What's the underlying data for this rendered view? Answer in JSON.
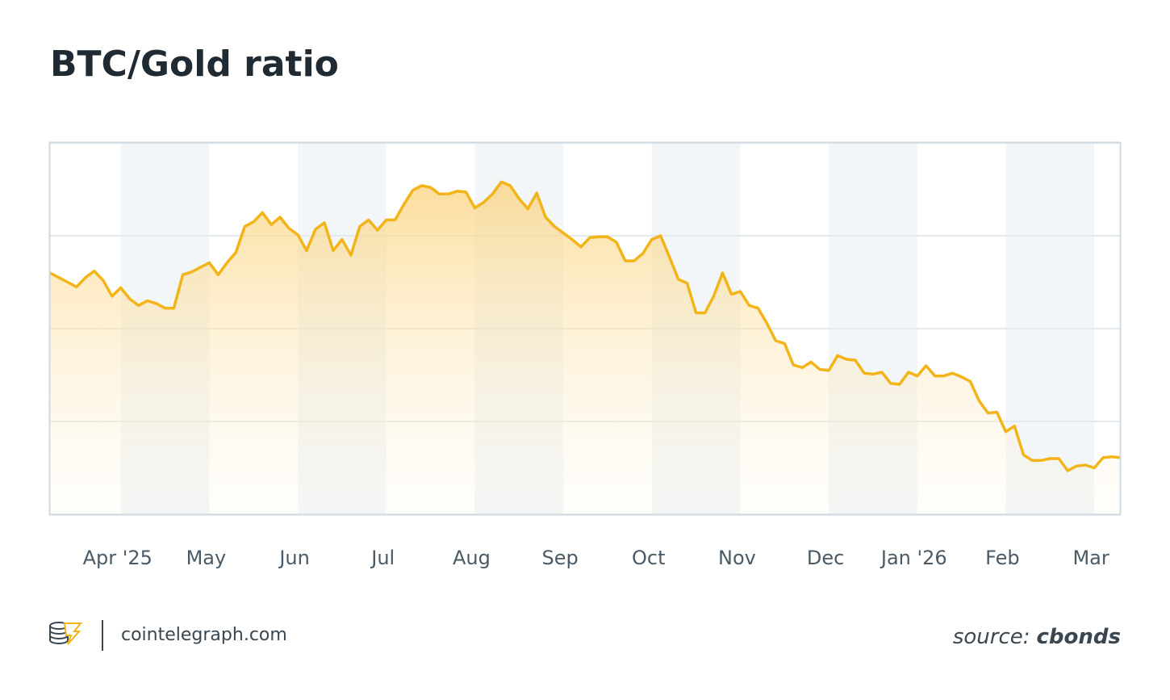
{
  "chart_data": {
    "type": "line",
    "title": "BTC/Gold ratio",
    "categories": [
      null,
      null,
      null,
      null,
      null,
      null,
      null,
      null,
      "Apr '25",
      null,
      null,
      null,
      null,
      null,
      null,
      null,
      null,
      null,
      "May",
      null,
      null,
      null,
      null,
      null,
      null,
      null,
      null,
      null,
      "Jun",
      null,
      null,
      null,
      null,
      null,
      null,
      null,
      null,
      null,
      "Jul",
      null,
      null,
      null,
      null,
      null,
      null,
      null,
      null,
      null,
      "Aug",
      null,
      null,
      null,
      null,
      null,
      null,
      null,
      null,
      null,
      "Sep",
      null,
      null,
      null,
      null,
      null,
      null,
      null,
      null,
      null,
      "Oct",
      null,
      null,
      null,
      null,
      null,
      null,
      null,
      null,
      null,
      "Nov",
      null,
      null,
      null,
      null,
      null,
      null,
      null,
      null,
      null,
      "Dec",
      null,
      null,
      null,
      null,
      null,
      null,
      null,
      null,
      null,
      "Jan '26",
      null,
      null,
      null,
      null,
      null,
      null,
      null,
      null,
      null,
      "Feb",
      null,
      null,
      null,
      null,
      null,
      null,
      null,
      null,
      null,
      "Mar",
      null,
      null,
      null
    ],
    "values": [
      26.0,
      25.5,
      25.0,
      24.5,
      25.5,
      26.2,
      25.2,
      23.5,
      24.4,
      23.2,
      22.5,
      23.0,
      22.7,
      22.2,
      22.2,
      25.8,
      26.1,
      26.6,
      27.1,
      25.8,
      27.1,
      28.2,
      31.0,
      31.5,
      32.5,
      31.2,
      32.0,
      30.8,
      30.1,
      28.4,
      30.7,
      31.4,
      28.4,
      29.6,
      27.9,
      31.0,
      31.7,
      30.6,
      31.7,
      31.7,
      33.4,
      34.9,
      35.4,
      35.2,
      34.5,
      34.5,
      34.8,
      34.7,
      33.0,
      33.6,
      34.5,
      35.8,
      35.4,
      34.0,
      32.9,
      34.6,
      32.0,
      31.0,
      30.3,
      29.6,
      28.8,
      29.8,
      29.9,
      29.9,
      29.3,
      27.3,
      27.3,
      28.1,
      29.6,
      30.0,
      27.7,
      25.3,
      24.9,
      21.7,
      21.7,
      23.5,
      26.0,
      23.7,
      24.0,
      22.5,
      22.2,
      20.6,
      18.7,
      18.4,
      16.1,
      15.8,
      16.4,
      15.6,
      15.5,
      17.1,
      16.7,
      16.6,
      15.2,
      15.1,
      15.3,
      14.1,
      14.0,
      15.3,
      14.9,
      16.0,
      14.9,
      14.9,
      15.2,
      14.8,
      14.3,
      12.2,
      10.9,
      11.0,
      8.9,
      9.5,
      6.4,
      5.8,
      5.8,
      6.0,
      6.0,
      4.7,
      5.2,
      5.3,
      5.0,
      6.1,
      6.2,
      6.1
    ],
    "color": "#f2b418",
    "ylim": [
      0,
      40
    ],
    "yticks": [
      0,
      10,
      20,
      30,
      40
    ],
    "grid": true
  },
  "footer": {
    "site": "cointelegraph.com",
    "source_label": "source:",
    "source_name": "cbonds"
  }
}
